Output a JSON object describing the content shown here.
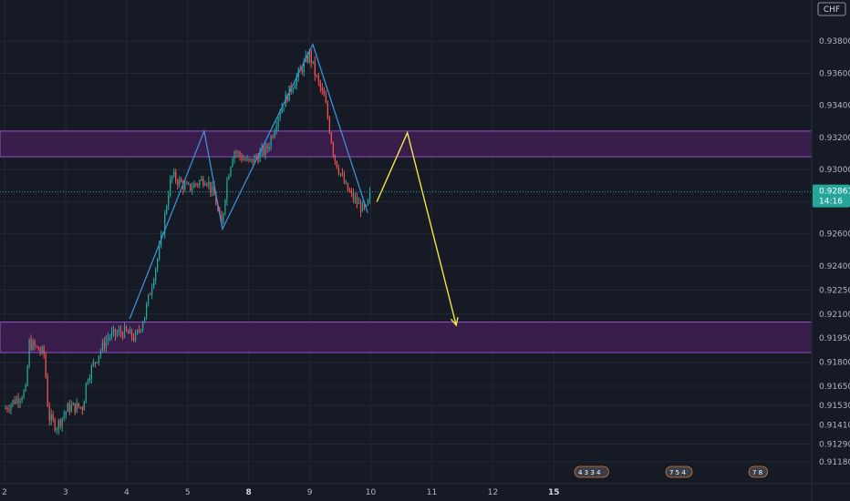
{
  "currency_label": "CHF",
  "last_price": {
    "value": "0.92861",
    "countdown": "14:16"
  },
  "colors": {
    "background": "#161a25",
    "grid": "#232733",
    "bull": "#26a69a",
    "bear": "#ef5350",
    "zone_fill": "#3e1f52",
    "zone_border": "#9c4fc7",
    "pattern_line": "#3d8fd6",
    "projection_line": "#f0e442",
    "last_price_badge": "#26a69a",
    "axis_text": "#b2b5be"
  },
  "event_markers": [
    {
      "label": "4 3 3 4"
    },
    {
      "label": "7 5 4"
    },
    {
      "label": "7 8"
    }
  ],
  "chart_data": {
    "type": "candlestick",
    "title": "",
    "xlabel": "",
    "ylabel": "",
    "ylim": [
      0.9106,
      0.94
    ],
    "xlim": [
      2.0,
      15.0
    ],
    "grid": true,
    "price_ticks": [
      "0.93800",
      "0.93600",
      "0.93400",
      "0.93200",
      "0.93000",
      "0.92800",
      "0.92600",
      "0.92400",
      "0.92250",
      "0.92100",
      "0.91950",
      "0.91800",
      "0.91650",
      "0.91530",
      "0.91410",
      "0.91290",
      "0.91180"
    ],
    "time_ticks": [
      {
        "x": 2,
        "label": "2",
        "bold": false
      },
      {
        "x": 3,
        "label": "3",
        "bold": false
      },
      {
        "x": 4,
        "label": "4",
        "bold": false
      },
      {
        "x": 5,
        "label": "5",
        "bold": false
      },
      {
        "x": 6,
        "label": "8",
        "bold": true
      },
      {
        "x": 7,
        "label": "9",
        "bold": false
      },
      {
        "x": 8,
        "label": "10",
        "bold": false
      },
      {
        "x": 9,
        "label": "11",
        "bold": false
      },
      {
        "x": 10,
        "label": "12",
        "bold": false
      },
      {
        "x": 11,
        "label": "15",
        "bold": true
      }
    ],
    "last_price": 0.92861,
    "zones": [
      {
        "from": 0.9308,
        "to": 0.9324
      },
      {
        "from": 0.9186,
        "to": 0.9205
      }
    ],
    "pattern_line": [
      {
        "x": 4.05,
        "y": 0.9207
      },
      {
        "x": 5.27,
        "y": 0.9324
      },
      {
        "x": 5.57,
        "y": 0.9263
      },
      {
        "x": 7.05,
        "y": 0.9378
      },
      {
        "x": 7.95,
        "y": 0.9273
      }
    ],
    "projection_line": [
      {
        "x": 8.1,
        "y": 0.928
      },
      {
        "x": 8.6,
        "y": 0.9323
      },
      {
        "x": 9.4,
        "y": 0.9203
      }
    ],
    "arrow_heads": [
      {
        "x": 9.4,
        "y": 0.9203
      }
    ],
    "price_path_keypoints": [
      [
        2.0,
        0.9151
      ],
      [
        2.35,
        0.9162
      ],
      [
        2.4,
        0.9192
      ],
      [
        2.65,
        0.9185
      ],
      [
        2.72,
        0.9146
      ],
      [
        2.85,
        0.914
      ],
      [
        3.05,
        0.9152
      ],
      [
        3.28,
        0.9152
      ],
      [
        3.35,
        0.917
      ],
      [
        3.55,
        0.9186
      ],
      [
        3.7,
        0.9196
      ],
      [
        3.95,
        0.9199
      ],
      [
        4.15,
        0.9195
      ],
      [
        4.3,
        0.921
      ],
      [
        4.55,
        0.9252
      ],
      [
        4.7,
        0.929
      ],
      [
        4.75,
        0.9296
      ],
      [
        5.0,
        0.9288
      ],
      [
        5.3,
        0.9295
      ],
      [
        5.45,
        0.9282
      ],
      [
        5.55,
        0.9264
      ],
      [
        5.65,
        0.9295
      ],
      [
        5.75,
        0.9312
      ],
      [
        6.0,
        0.9304
      ],
      [
        6.3,
        0.9313
      ],
      [
        6.35,
        0.9318
      ],
      [
        6.5,
        0.9336
      ],
      [
        6.75,
        0.9355
      ],
      [
        7.0,
        0.9372
      ],
      [
        7.1,
        0.9358
      ],
      [
        7.25,
        0.9343
      ],
      [
        7.4,
        0.9308
      ],
      [
        7.6,
        0.9288
      ],
      [
        7.8,
        0.9278
      ],
      [
        7.92,
        0.9274
      ],
      [
        8.0,
        0.9286
      ]
    ]
  }
}
